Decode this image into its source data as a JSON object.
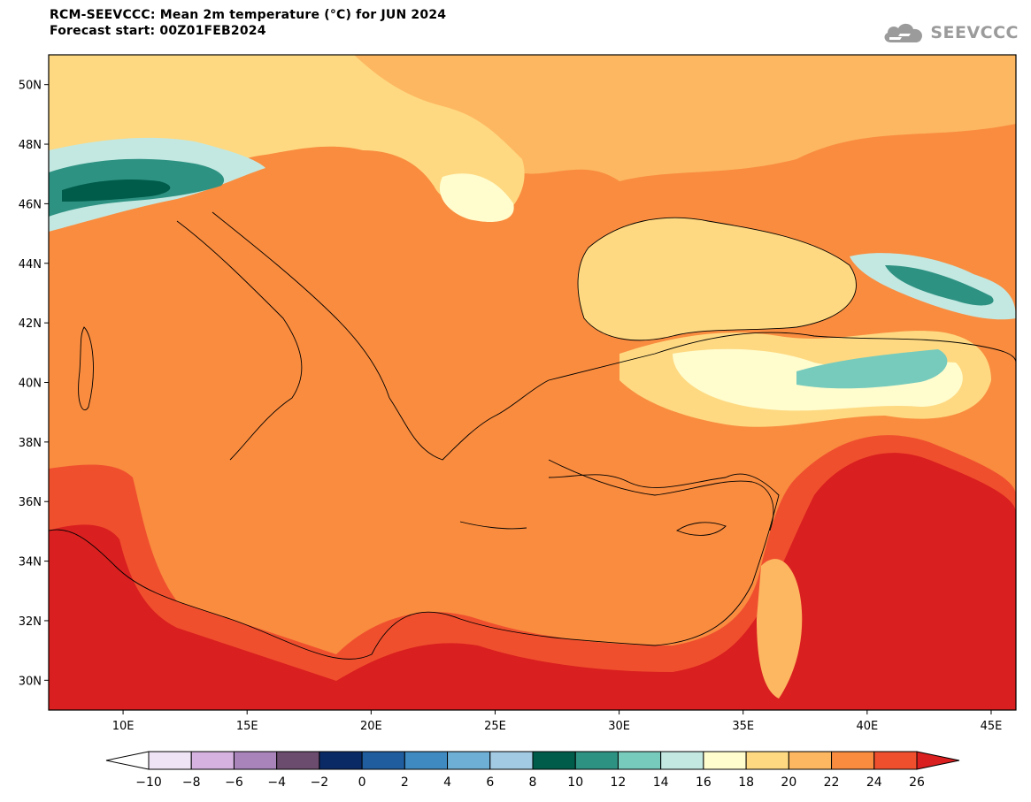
{
  "header": {
    "title_line1": "RCM-SEEVCCC: Mean 2m temperature (°C) for JUN 2024",
    "title_line2": "Forecast start: 00Z01FEB2024",
    "logo_text": "SEEVCCC"
  },
  "map": {
    "lon_range": [
      7,
      46
    ],
    "lat_range": [
      29,
      51
    ],
    "lat_ticks": [
      {
        "v": 50,
        "label": "50N"
      },
      {
        "v": 48,
        "label": "48N"
      },
      {
        "v": 46,
        "label": "46N"
      },
      {
        "v": 44,
        "label": "44N"
      },
      {
        "v": 42,
        "label": "42N"
      },
      {
        "v": 40,
        "label": "40N"
      },
      {
        "v": 38,
        "label": "38N"
      },
      {
        "v": 36,
        "label": "36N"
      },
      {
        "v": 34,
        "label": "34N"
      },
      {
        "v": 32,
        "label": "32N"
      },
      {
        "v": 30,
        "label": "30N"
      }
    ],
    "lon_ticks": [
      {
        "v": 10,
        "label": "10E"
      },
      {
        "v": 15,
        "label": "15E"
      },
      {
        "v": 20,
        "label": "20E"
      },
      {
        "v": 25,
        "label": "25E"
      },
      {
        "v": 30,
        "label": "30E"
      },
      {
        "v": 35,
        "label": "35E"
      },
      {
        "v": 40,
        "label": "40E"
      },
      {
        "v": 45,
        "label": "45E"
      }
    ]
  },
  "colorbar": {
    "labels": [
      "−10",
      "−8",
      "−6",
      "−4",
      "−2",
      "0",
      "2",
      "4",
      "6",
      "8",
      "10",
      "12",
      "14",
      "16",
      "18",
      "20",
      "22",
      "24",
      "26"
    ],
    "under_color": "#ffffff",
    "colors": [
      "#efe4f5",
      "#d5b2e0",
      "#a884bb",
      "#6b4c6e",
      "#0a2a66",
      "#1f5d9e",
      "#3f8ac1",
      "#6eafd6",
      "#a2cbe3",
      "#005c4a",
      "#2e9283",
      "#76cbbd",
      "#c3e8e1",
      "#fffccd",
      "#fed981",
      "#fdb761",
      "#f98c3f",
      "#f04f2e"
    ],
    "over_color": "#d91f1f"
  },
  "palette": {
    "t18": "#fffccd",
    "t20": "#fed981",
    "t22": "#fdb761",
    "t24": "#f98c3f",
    "t26": "#f04f2e",
    "t28": "#d91f1f",
    "t12": "#2e9283",
    "t10": "#005c4a",
    "t14": "#76cbbd",
    "t16": "#c3e8e1"
  }
}
